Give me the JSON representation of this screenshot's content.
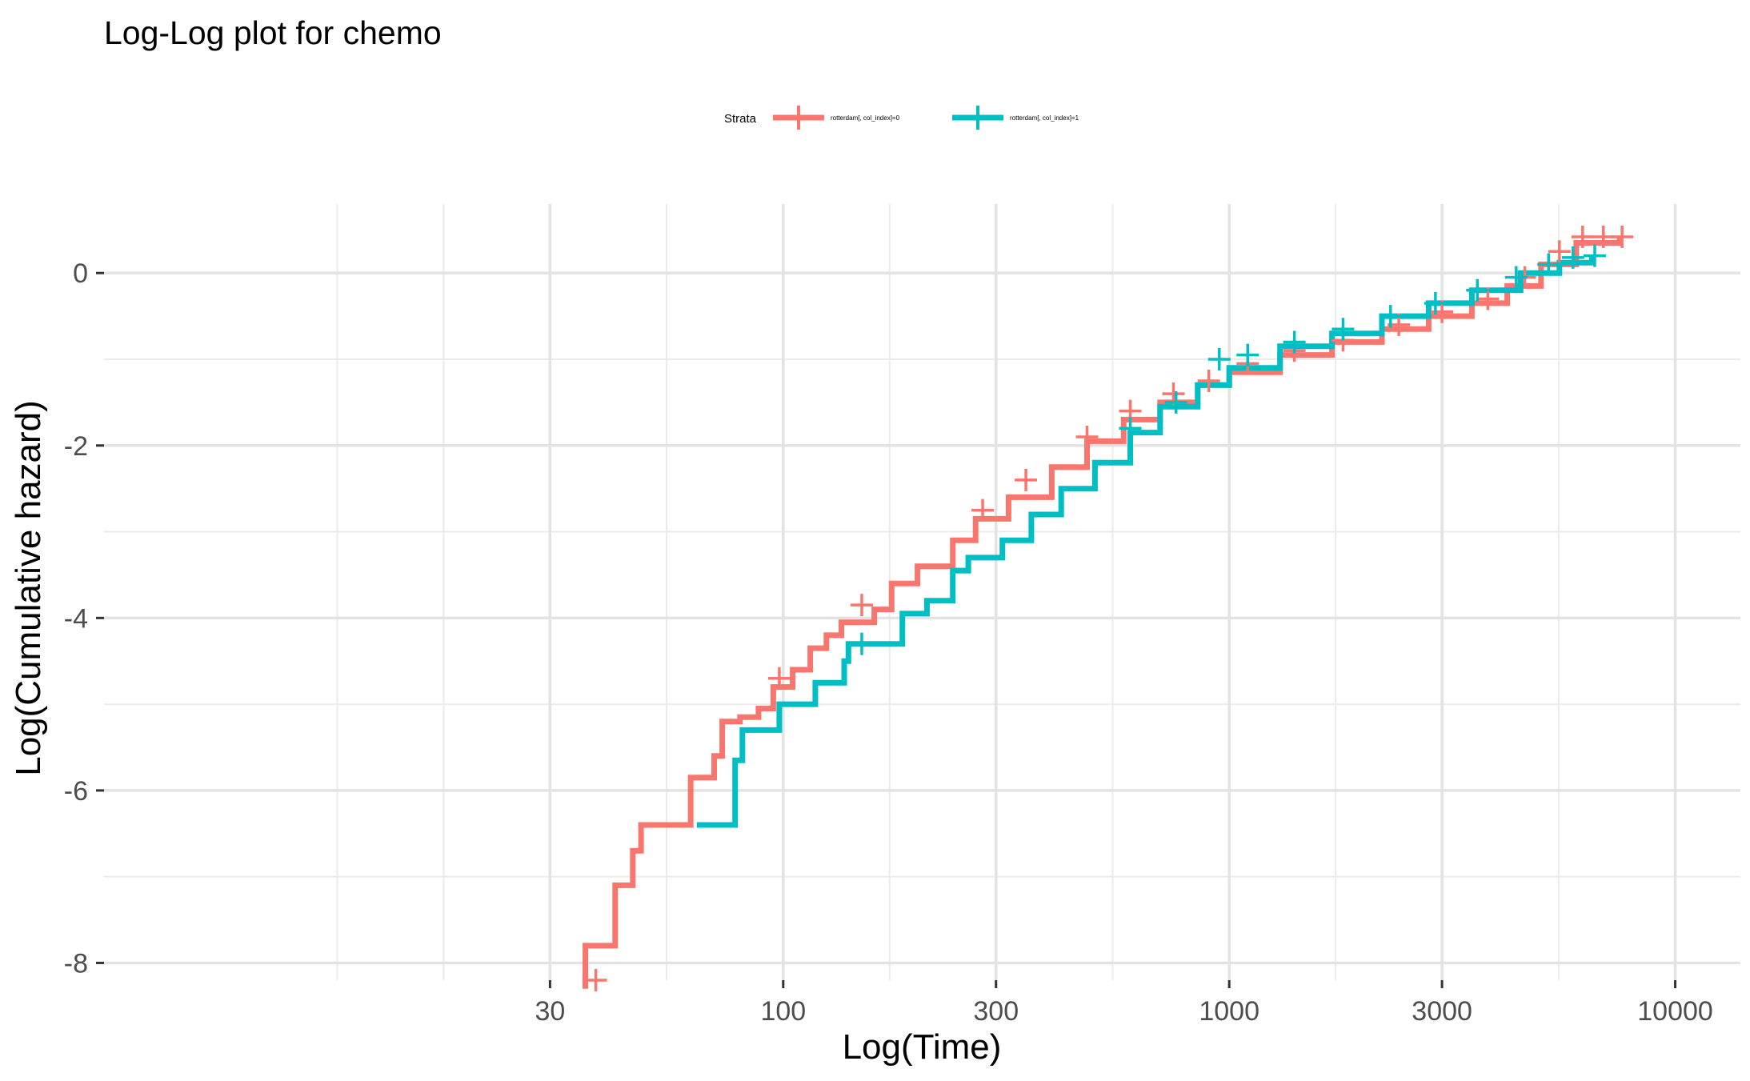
{
  "chart_data": {
    "type": "line",
    "title": "Log-Log plot for chemo",
    "xlabel": "Log(Time)",
    "ylabel": "Log(Cumulative hazard)",
    "x_scale": "log10",
    "xlim": [
      3,
      14000
    ],
    "ylim": [
      -8.2,
      0.8
    ],
    "x_ticks": [
      30,
      100,
      300,
      1000,
      3000,
      10000
    ],
    "x_tick_labels": [
      "30",
      "100",
      "300",
      "1000",
      "3000",
      "10000"
    ],
    "y_ticks": [
      0,
      -2,
      -4,
      -6,
      -8
    ],
    "y_tick_labels": [
      "0",
      "-2",
      "-4",
      "-6",
      "-8"
    ],
    "grid": true,
    "legend": {
      "title": "Strata",
      "position": "top"
    },
    "series": [
      {
        "name": "rotterdam[, col_index]=0",
        "color": "#F8766D",
        "points": [
          [
            36,
            -8.3
          ],
          [
            36,
            -7.8
          ],
          [
            42,
            -7.8
          ],
          [
            42,
            -7.1
          ],
          [
            46,
            -7.1
          ],
          [
            46,
            -6.7
          ],
          [
            48,
            -6.4
          ],
          [
            61,
            -6.4
          ],
          [
            62,
            -5.85
          ],
          [
            69,
            -5.85
          ],
          [
            70,
            -5.6
          ],
          [
            73,
            -5.2
          ],
          [
            80,
            -5.15
          ],
          [
            88,
            -5.05
          ],
          [
            95,
            -4.8
          ],
          [
            105,
            -4.6
          ],
          [
            115,
            -4.35
          ],
          [
            125,
            -4.2
          ],
          [
            135,
            -4.05
          ],
          [
            160,
            -3.9
          ],
          [
            175,
            -3.6
          ],
          [
            200,
            -3.4
          ],
          [
            240,
            -3.1
          ],
          [
            270,
            -2.85
          ],
          [
            320,
            -2.6
          ],
          [
            400,
            -2.25
          ],
          [
            480,
            -1.95
          ],
          [
            580,
            -1.7
          ],
          [
            700,
            -1.5
          ],
          [
            850,
            -1.3
          ],
          [
            1000,
            -1.15
          ],
          [
            1300,
            -0.95
          ],
          [
            1700,
            -0.8
          ],
          [
            2200,
            -0.65
          ],
          [
            2800,
            -0.5
          ],
          [
            3500,
            -0.35
          ],
          [
            4200,
            -0.15
          ],
          [
            5000,
            0.1
          ],
          [
            6000,
            0.35
          ],
          [
            7500,
            0.42
          ]
        ],
        "censor_marks": [
          [
            38,
            -8.2
          ],
          [
            98,
            -4.7
          ],
          [
            150,
            -3.85
          ],
          [
            280,
            -2.75
          ],
          [
            350,
            -2.4
          ],
          [
            480,
            -1.9
          ],
          [
            600,
            -1.6
          ],
          [
            750,
            -1.4
          ],
          [
            900,
            -1.25
          ],
          [
            1100,
            -1.05
          ],
          [
            1400,
            -0.9
          ],
          [
            1800,
            -0.78
          ],
          [
            2400,
            -0.6
          ],
          [
            3000,
            -0.45
          ],
          [
            3800,
            -0.3
          ],
          [
            4600,
            -0.05
          ],
          [
            5500,
            0.25
          ],
          [
            6200,
            0.42
          ],
          [
            6900,
            0.42
          ],
          [
            7600,
            0.42
          ]
        ]
      },
      {
        "name": "rotterdam[, col_index]=1",
        "color": "#00BFC4",
        "points": [
          [
            64,
            -6.4
          ],
          [
            78,
            -6.4
          ],
          [
            78,
            -5.65
          ],
          [
            81,
            -5.65
          ],
          [
            81,
            -5.3
          ],
          [
            98,
            -5.3
          ],
          [
            98,
            -5.0
          ],
          [
            118,
            -5.0
          ],
          [
            118,
            -4.75
          ],
          [
            135,
            -4.75
          ],
          [
            137,
            -4.5
          ],
          [
            140,
            -4.3
          ],
          [
            175,
            -4.3
          ],
          [
            185,
            -3.95
          ],
          [
            210,
            -3.8
          ],
          [
            240,
            -3.45
          ],
          [
            260,
            -3.3
          ],
          [
            310,
            -3.1
          ],
          [
            360,
            -2.8
          ],
          [
            420,
            -2.5
          ],
          [
            500,
            -2.2
          ],
          [
            600,
            -1.85
          ],
          [
            700,
            -1.55
          ],
          [
            850,
            -1.3
          ],
          [
            1000,
            -1.1
          ],
          [
            1300,
            -0.85
          ],
          [
            1700,
            -0.7
          ],
          [
            2200,
            -0.5
          ],
          [
            2800,
            -0.35
          ],
          [
            3500,
            -0.2
          ],
          [
            4500,
            0.0
          ],
          [
            5500,
            0.12
          ],
          [
            6500,
            0.2
          ]
        ],
        "censor_marks": [
          [
            150,
            -4.3
          ],
          [
            600,
            -1.8
          ],
          [
            760,
            -1.5
          ],
          [
            950,
            -1.0
          ],
          [
            1100,
            -0.95
          ],
          [
            1400,
            -0.8
          ],
          [
            1800,
            -0.65
          ],
          [
            2300,
            -0.5
          ],
          [
            2900,
            -0.35
          ],
          [
            3600,
            -0.2
          ],
          [
            4400,
            -0.05
          ],
          [
            5200,
            0.1
          ],
          [
            5900,
            0.18
          ],
          [
            6600,
            0.2
          ]
        ]
      }
    ]
  }
}
